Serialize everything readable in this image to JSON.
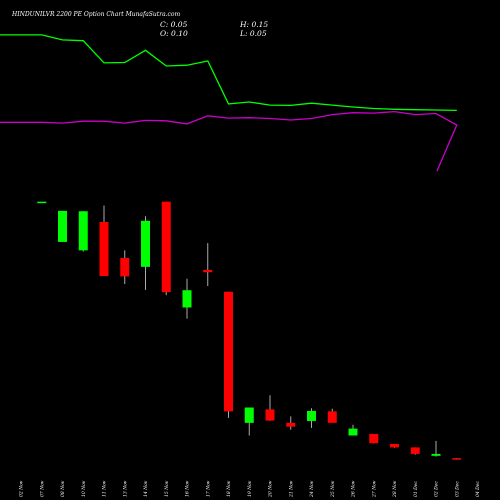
{
  "header": {
    "title": "HINDUNILVR 2200  PE Option  Chart  MunafaSutra.com"
  },
  "ohlc": {
    "c_label": "C: 0.05",
    "h_label": "H: 0.15",
    "o_label": "O: 0.10",
    "l_label": "L: 0.05"
  },
  "colors": {
    "bull": "#00ff00",
    "bear": "#ff0000",
    "line_green": "#00ff00",
    "line_magenta": "#cc00cc",
    "background": "#000000"
  },
  "chart_data": {
    "type": "candlestick",
    "categories": [
      "02 Nov",
      "07 Nov",
      "08 Nov",
      "10 Nov",
      "11 Nov",
      "13 Nov",
      "14 Nov",
      "15 Nov",
      "16 Nov",
      "17 Nov",
      "18 Nov",
      "19 Nov",
      "20 Nov",
      "21 Nov",
      "24 Nov",
      "25 Nov",
      "26 Nov",
      "27 Nov",
      "28 Nov",
      "01 Dec",
      "02 Dec",
      "03 Dec",
      "04 Dec"
    ],
    "candles": [
      {
        "o": 28.0,
        "h": 28.0,
        "l": 28.0,
        "c": 28.0
      },
      {
        "o": 17.5,
        "h": 25.6,
        "l": 17.5,
        "c": 25.6
      },
      {
        "o": 15.3,
        "h": 25.5,
        "l": 15.0,
        "c": 25.5
      },
      {
        "o": 22.7,
        "h": 27.0,
        "l": 8.6,
        "c": 8.6
      },
      {
        "o": 13.3,
        "h": 15.3,
        "l": 6.5,
        "c": 8.5
      },
      {
        "o": 11.0,
        "h": 24.2,
        "l": 5.0,
        "c": 23.0
      },
      {
        "o": 28.0,
        "h": 28.0,
        "l": 3.6,
        "c": 4.4
      },
      {
        "o": 0.4,
        "h": 7.9,
        "l": -2.5,
        "c": 4.9
      },
      {
        "o": 10.2,
        "h": 17.2,
        "l": 6.0,
        "c": 9.6
      },
      {
        "o": 4.5,
        "h": 4.5,
        "l": -28.4,
        "c": -26.7
      },
      {
        "o": -29.7,
        "h": -25.7,
        "l": -33.0,
        "c": -25.7
      },
      {
        "o": -26.2,
        "h": -22.5,
        "l": -29.2,
        "c": -29.1
      },
      {
        "o": -29.7,
        "h": -28.0,
        "l": -31.5,
        "c": -30.7
      },
      {
        "o": -29.2,
        "h": -25.9,
        "l": -31.0,
        "c": -26.6
      },
      {
        "o": -26.7,
        "h": -26.0,
        "l": -29.5,
        "c": -29.7
      },
      {
        "o": -33.0,
        "h": -30.2,
        "l": -33.0,
        "c": -31.2
      },
      {
        "o": -32.6,
        "h": -32.6,
        "l": -35.1,
        "c": -35.0
      },
      {
        "o": -35.2,
        "h": -35.2,
        "l": -36.2,
        "c": -36.1
      },
      {
        "o": -36.1,
        "h": -36.1,
        "l": -38.0,
        "c": -37.8
      },
      {
        "o": -38.3,
        "h": -34.4,
        "l": -38.5,
        "c": -37.8
      },
      {
        "o": -38.9,
        "h": -38.9,
        "l": -39.3,
        "c": -39.3
      }
    ],
    "candle_index": [
      1,
      2,
      3,
      4,
      5,
      6,
      7,
      8,
      9,
      10,
      11,
      12,
      13,
      14,
      15,
      16,
      17,
      18,
      19,
      20,
      21
    ],
    "series": [
      {
        "values": [
          71.5,
          71.5,
          70.2,
          70.0,
          64.2,
          64.3,
          67.5,
          63.4,
          63.6,
          64.7,
          53.5,
          54.0,
          53.2,
          53.1,
          53.7,
          53.2,
          52.7,
          52.3,
          52.1,
          52.0,
          51.9,
          51.8,
          null
        ]
      },
      {
        "values": [
          48.7,
          48.7,
          48.5,
          49.0,
          49.0,
          48.5,
          49.2,
          49.1,
          48.3,
          50.4,
          49.8,
          49.9,
          49.7,
          49.3,
          49.7,
          50.7,
          51.2,
          51.1,
          51.5,
          50.7,
          51.0,
          48.0,
          null
        ]
      }
    ],
    "ylim": [
      -42,
      78
    ]
  }
}
